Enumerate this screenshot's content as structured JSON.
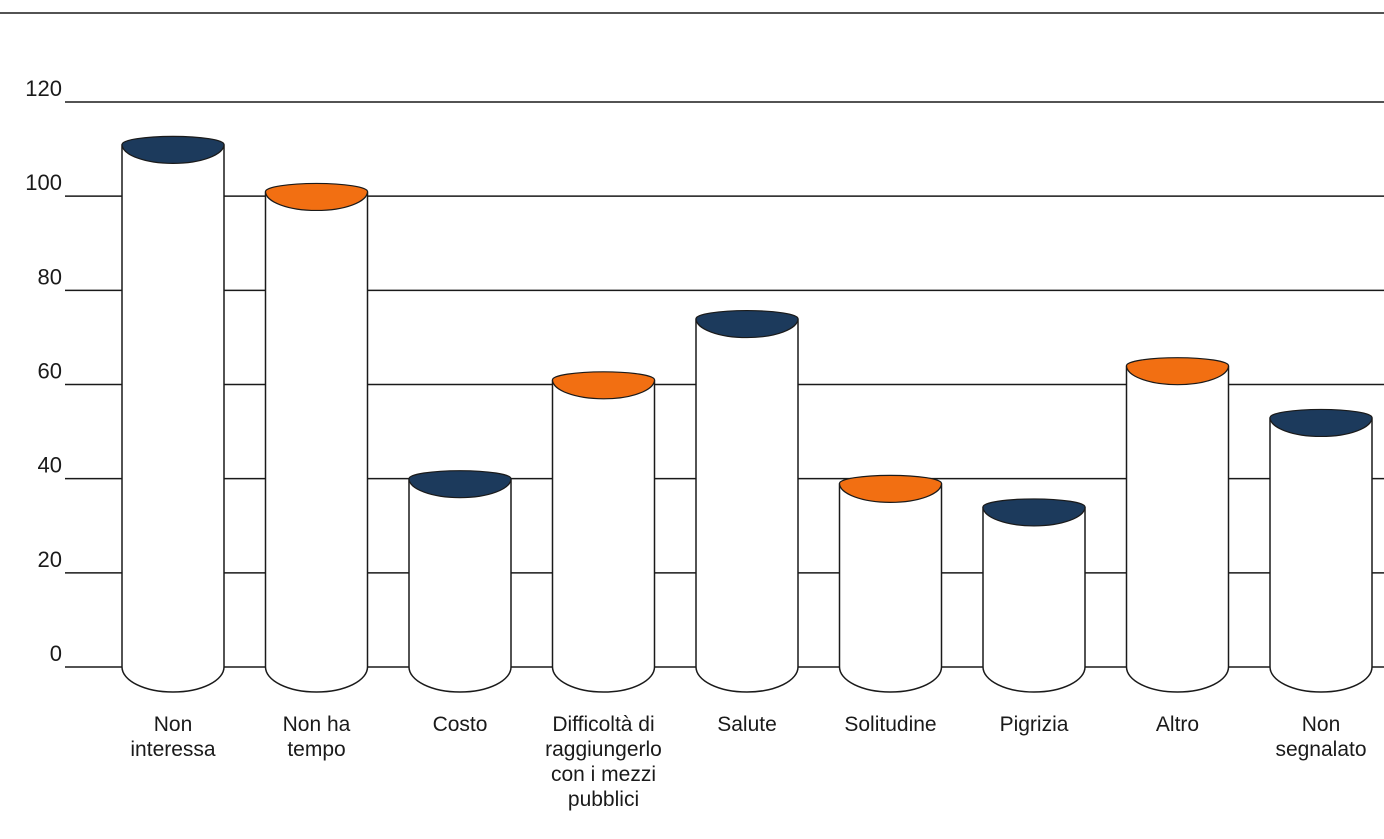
{
  "chart_data": {
    "type": "bar",
    "style": "cylinder",
    "title": "",
    "xlabel": "",
    "ylabel": "",
    "ylim": [
      0,
      120
    ],
    "yticks": [
      0,
      20,
      40,
      60,
      80,
      100,
      120
    ],
    "yticks_labels": [
      "0",
      "20",
      "40",
      "60",
      "80",
      "100",
      "120"
    ],
    "grid": true,
    "categories": [
      [
        "Non",
        "interessa"
      ],
      [
        "Non ha",
        "tempo"
      ],
      [
        "Costo"
      ],
      [
        "Difficoltà di",
        "raggiungerlo",
        "con i mezzi",
        "pubblici"
      ],
      [
        "Salute"
      ],
      [
        "Solitudine"
      ],
      [
        "Pigrizia"
      ],
      [
        "Altro"
      ],
      [
        "Non",
        "segnalato"
      ]
    ],
    "values": [
      111,
      101,
      40,
      61,
      74,
      39,
      34,
      64,
      53
    ],
    "cap_colors": [
      "#1c3a5c",
      "#f26f12",
      "#1c3a5c",
      "#f26f12",
      "#1c3a5c",
      "#f26f12",
      "#1c3a5c",
      "#f26f12",
      "#1c3a5c"
    ]
  }
}
